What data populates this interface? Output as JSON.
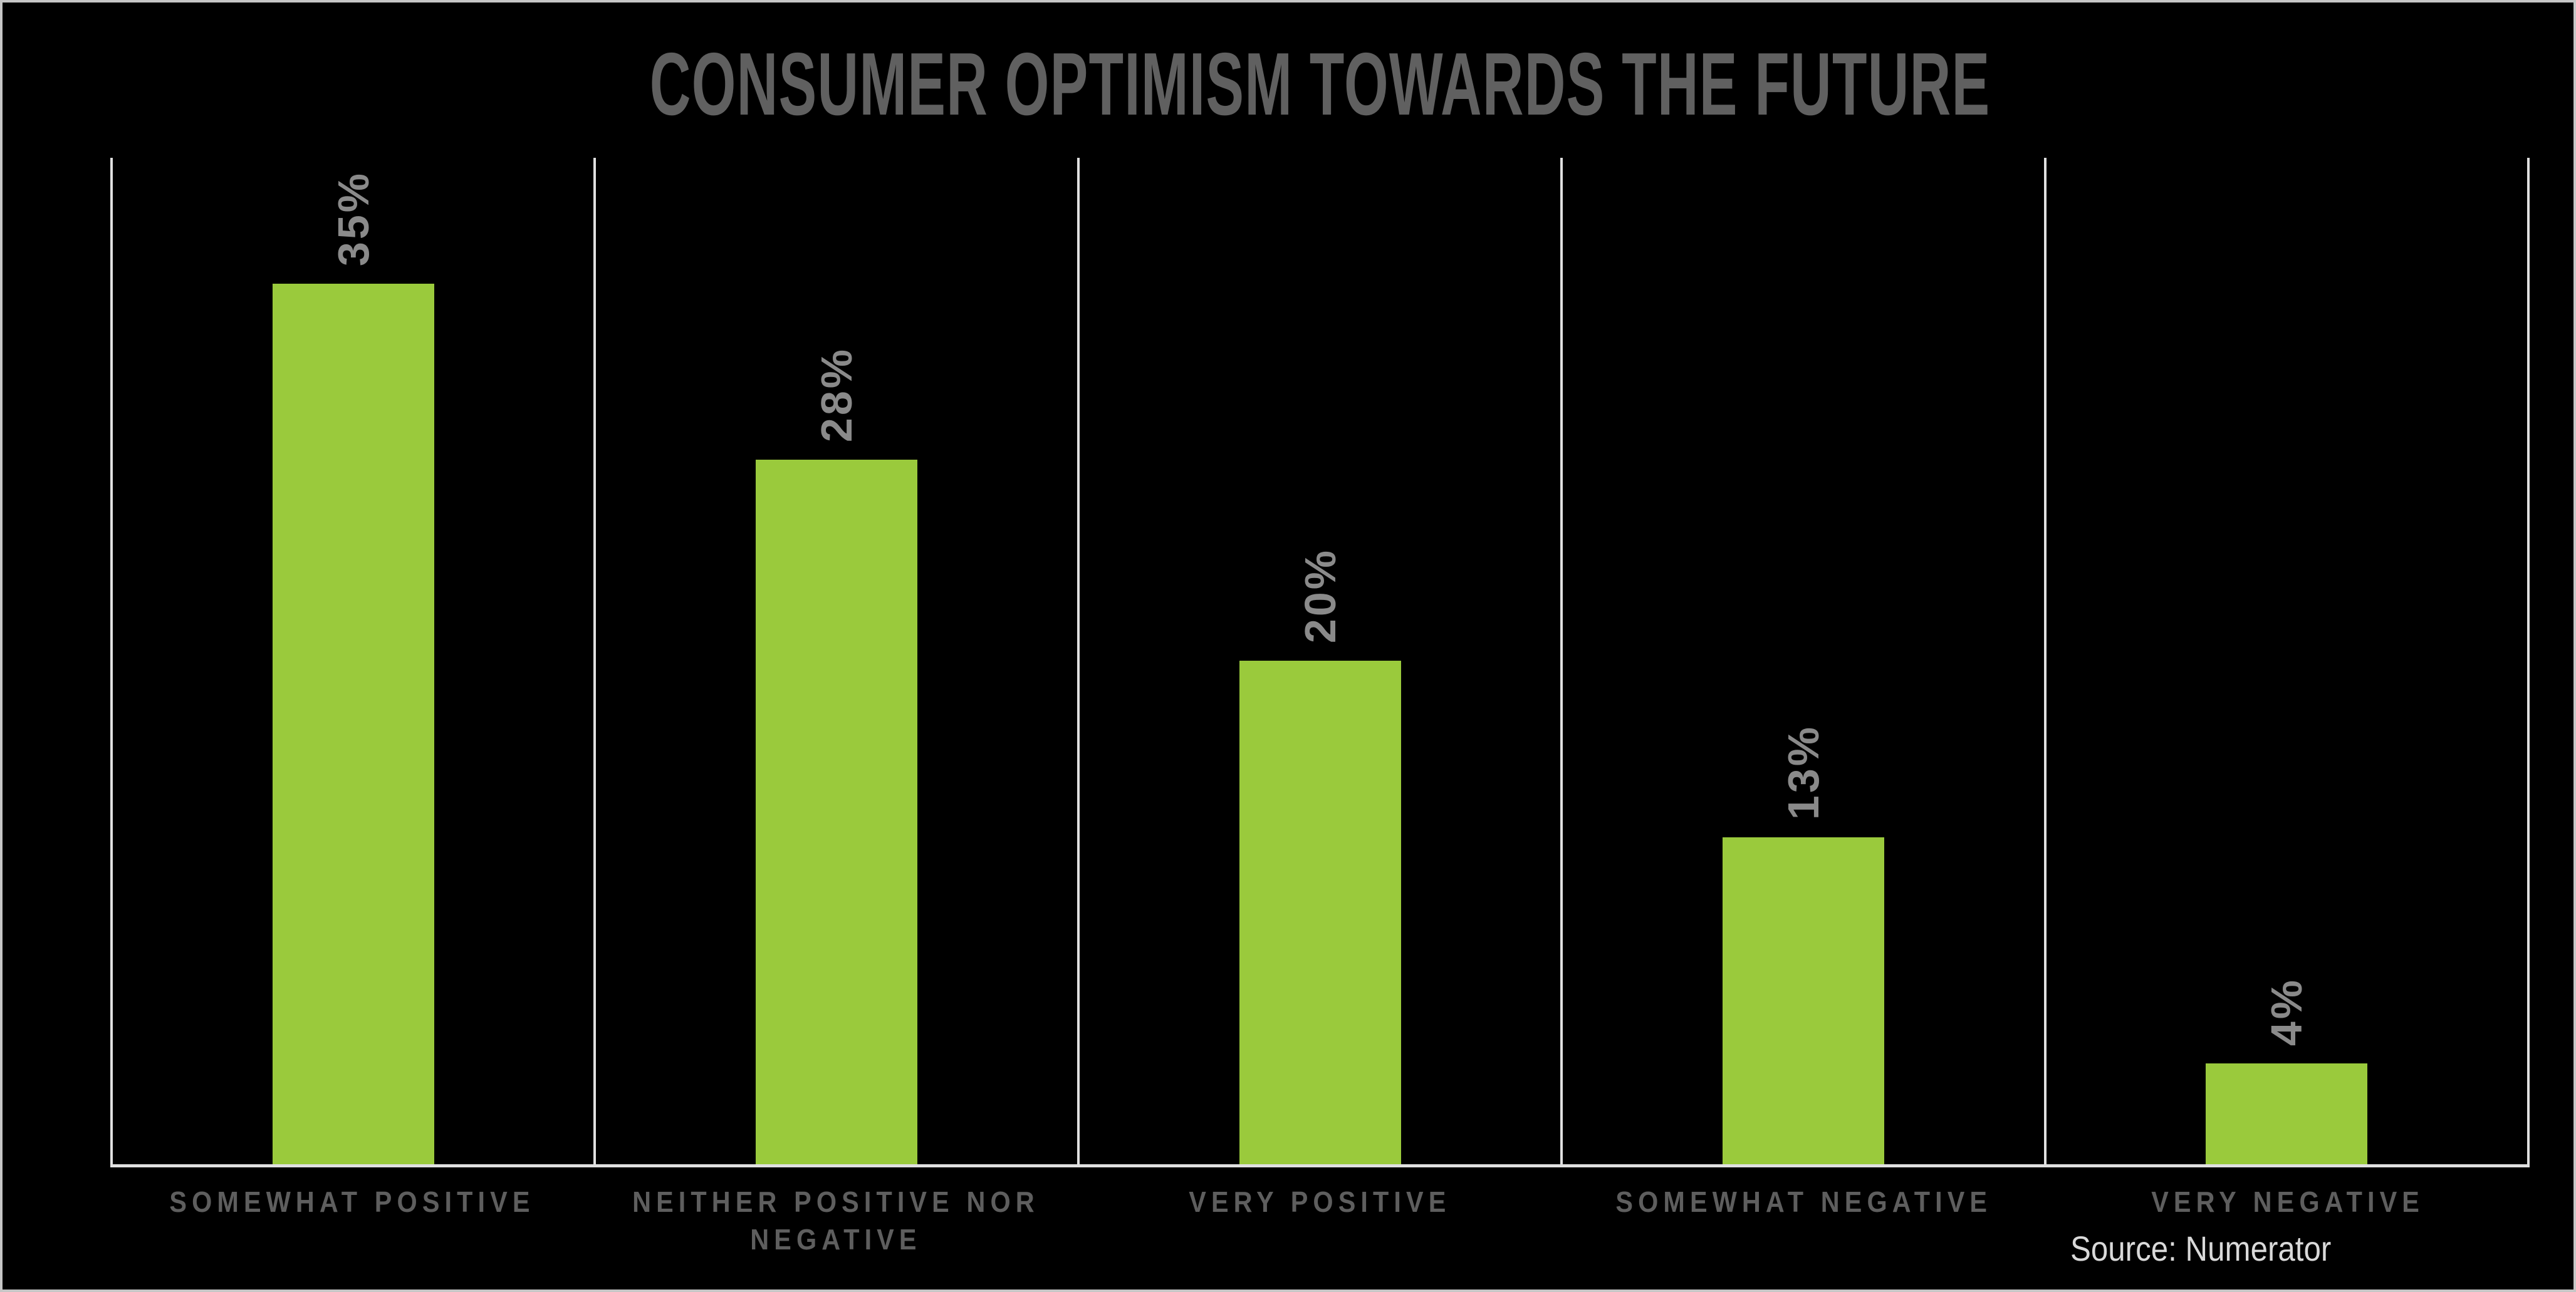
{
  "page": {
    "background": "#000000",
    "frame_border_color": "#c6c6c6"
  },
  "header": {
    "title": "CONSUMER OPTIMISM TOWARDS THE FUTURE",
    "title_color": "#606060"
  },
  "footer": {
    "source_label": "Source: Numerator",
    "source_color": "#d9d9d9"
  },
  "chart_data": {
    "type": "bar",
    "title": "CONSUMER OPTIMISM TOWARDS THE FUTURE",
    "categories": [
      "SOMEWHAT POSITIVE",
      "NEITHER POSITIVE NOR NEGATIVE",
      "VERY POSITIVE",
      "SOMEWHAT NEGATIVE",
      "VERY NEGATIVE"
    ],
    "values": [
      35,
      28,
      20,
      13,
      4
    ],
    "value_labels": [
      "35%",
      "28%",
      "20%",
      "13%",
      "4%"
    ],
    "display_labels": [
      "SOMEWHAT POSITIVE",
      "NEITHER POSITIVE NOR\nNEGATIVE",
      "VERY POSITIVE",
      "SOMEWHAT NEGATIVE",
      "VERY NEGATIVE"
    ],
    "xlabel": "",
    "ylabel": "",
    "ylim": [
      0,
      40
    ],
    "grid": "vertical category separator lines, baseline only, no y-axis ticks",
    "legend": "none",
    "value_label_rotation": "90deg counterclockwise above each bar",
    "bar_color": "#9aca3c",
    "value_label_color": "#8a8a8a",
    "category_label_color": "#5e5e5e",
    "separator_color": "#e0e0e0",
    "annotations": [
      "Source: Numerator"
    ]
  }
}
